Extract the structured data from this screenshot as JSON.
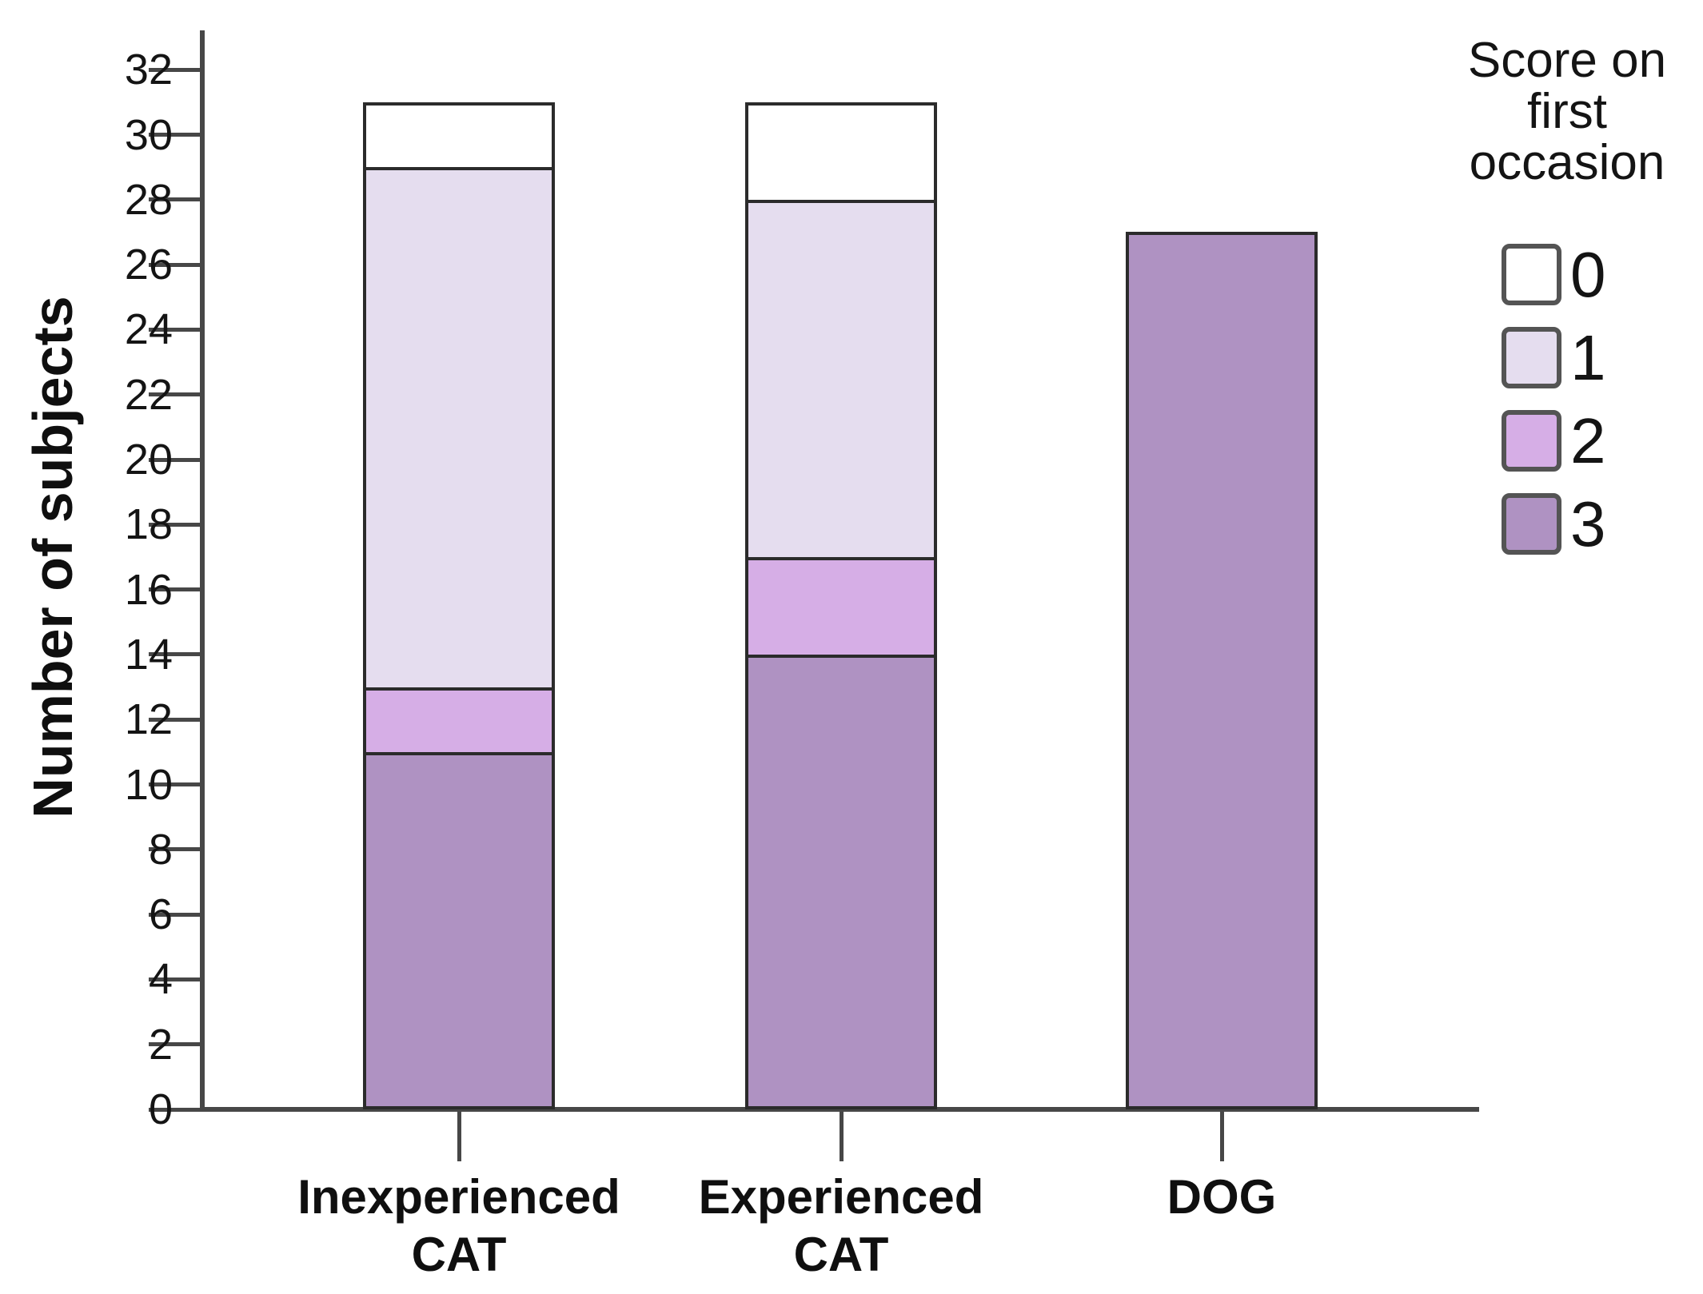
{
  "chart_data": {
    "type": "bar",
    "stacked": true,
    "title": "",
    "xlabel": "",
    "ylabel": "Number of subjects",
    "categories": [
      "Inexperienced CAT",
      "Experienced CAT",
      "DOG"
    ],
    "category_label_lines": [
      [
        "Inexperienced",
        "CAT"
      ],
      [
        "Experienced",
        "CAT"
      ],
      [
        "DOG"
      ]
    ],
    "series": [
      {
        "name": "0",
        "color": "#ffffff",
        "values": [
          2,
          3,
          0
        ]
      },
      {
        "name": "1",
        "color": "#e5ddef",
        "values": [
          16,
          11,
          0
        ]
      },
      {
        "name": "2",
        "color": "#d6aee6",
        "values": [
          2,
          3,
          0
        ]
      },
      {
        "name": "3",
        "color": "#af92c2",
        "values": [
          11,
          14,
          27
        ]
      }
    ],
    "stack_order_bottom_to_top": [
      "3",
      "2",
      "1",
      "0"
    ],
    "totals": [
      31,
      31,
      27
    ],
    "y_ticks": [
      0,
      2,
      4,
      6,
      8,
      10,
      12,
      14,
      16,
      18,
      20,
      22,
      24,
      26,
      28,
      30,
      32
    ],
    "ylim": [
      0,
      33
    ],
    "grid": false,
    "legend_position": "top-right",
    "legend_title": "Score on first occasion"
  },
  "y_axis": {
    "title": "Number of subjects"
  },
  "legend": {
    "title_lines": [
      "Score on",
      "first",
      "occasion"
    ],
    "items": [
      {
        "label": "0",
        "color": "#ffffff"
      },
      {
        "label": "1",
        "color": "#e5ddef"
      },
      {
        "label": "2",
        "color": "#d6aee6"
      },
      {
        "label": "3",
        "color": "#af92c2"
      }
    ]
  },
  "colors": {
    "axis": "#474747",
    "bar_border": "#2b2b2b",
    "text": "#111111",
    "background": "#ffffff"
  }
}
